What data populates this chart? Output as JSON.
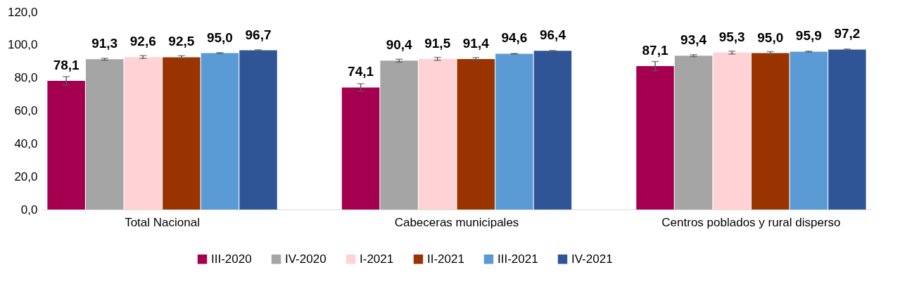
{
  "chart_data": {
    "type": "bar",
    "categories": [
      "Total Nacional",
      "Cabeceras municipales",
      "Centros poblados y rural disperso"
    ],
    "series": [
      {
        "name": "III-2020",
        "color": "#a50050",
        "values": [
          78.1,
          74.1,
          87.1
        ],
        "value_labels": [
          "78,1",
          "74,1",
          "87,1"
        ],
        "errors": [
          2.6,
          2.3,
          2.8
        ]
      },
      {
        "name": "IV-2020",
        "color": "#a5a5a5",
        "values": [
          91.3,
          90.4,
          93.4
        ],
        "value_labels": [
          "91,3",
          "90,4",
          "93,4"
        ],
        "errors": [
          0.6,
          0.9,
          0.6
        ]
      },
      {
        "name": "I-2021",
        "color": "#ffd3d5",
        "values": [
          92.6,
          91.5,
          95.3
        ],
        "value_labels": [
          "92,6",
          "91,5",
          "95,3"
        ],
        "errors": [
          0.9,
          0.9,
          0.9
        ]
      },
      {
        "name": "II-2021",
        "color": "#993300",
        "values": [
          92.5,
          91.4,
          95.0
        ],
        "value_labels": [
          "92,5",
          "91,4",
          "95,0"
        ],
        "errors": [
          0.9,
          0.9,
          0.9
        ]
      },
      {
        "name": "III-2021",
        "color": "#5b9bd5",
        "values": [
          95.0,
          94.6,
          95.9
        ],
        "value_labels": [
          "95,0",
          "94,6",
          "95,9"
        ],
        "errors": [
          0.3,
          0.2,
          0.3
        ]
      },
      {
        "name": "IV-2021",
        "color": "#2f5597",
        "values": [
          96.7,
          96.4,
          97.2
        ],
        "value_labels": [
          "96,7",
          "96,4",
          "97,2"
        ],
        "errors": [
          0.3,
          0.2,
          0.3
        ]
      }
    ],
    "ylim": [
      0,
      120
    ],
    "yticks": [
      {
        "value": 0,
        "label": "0,0"
      },
      {
        "value": 20,
        "label": "20,0"
      },
      {
        "value": 40,
        "label": "40,0"
      },
      {
        "value": 60,
        "label": "60,0"
      },
      {
        "value": 80,
        "label": "80,0"
      },
      {
        "value": 100,
        "label": "100,0"
      },
      {
        "value": 120,
        "label": "120,0"
      }
    ],
    "grid": false,
    "legend": "bottom"
  }
}
